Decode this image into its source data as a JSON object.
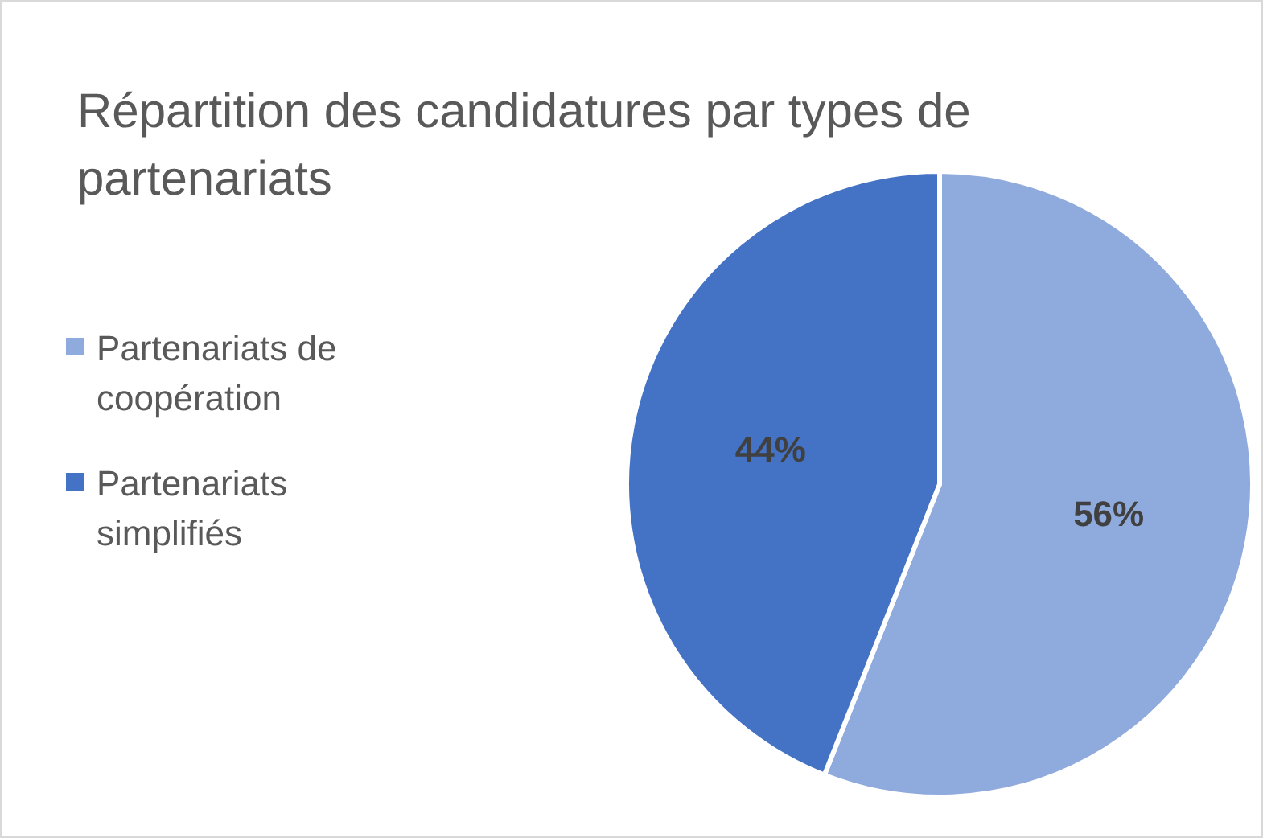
{
  "chart_data": {
    "type": "pie",
    "title": "Répartition des candidatures par types de partenariats",
    "categories": [
      "Partenariats de coopération",
      "Partenariats simplifiés"
    ],
    "values": [
      56,
      44
    ],
    "colors": [
      "#8faadc",
      "#4472c4"
    ],
    "value_labels": [
      "56%",
      "44%"
    ],
    "legend": "left"
  }
}
